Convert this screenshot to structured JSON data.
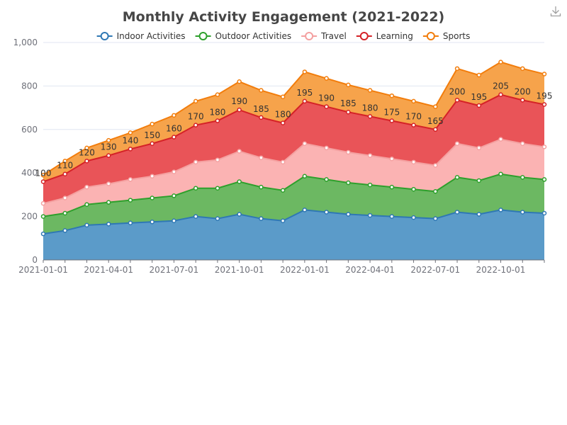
{
  "chart_data": {
    "type": "area",
    "stacked": true,
    "title": "Monthly Activity Engagement (2021-2022)",
    "xlabel": "",
    "ylabel": "",
    "ylim": [
      0,
      1000
    ],
    "y_ticks": [
      0,
      200,
      400,
      600,
      800,
      1000
    ],
    "y_tick_labels": [
      "0",
      "200",
      "400",
      "600",
      "800",
      "1,000"
    ],
    "x_tick_labels": [
      "2021-01-01",
      "2021-04-01",
      "2021-07-01",
      "2021-10-01",
      "2022-01-01",
      "2022-04-01",
      "2022-07-01",
      "2022-10-01"
    ],
    "x": [
      "2021-01",
      "2021-02",
      "2021-03",
      "2021-04",
      "2021-05",
      "2021-06",
      "2021-07",
      "2021-08",
      "2021-09",
      "2021-10",
      "2021-11",
      "2021-12",
      "2022-01",
      "2022-02",
      "2022-03",
      "2022-04",
      "2022-05",
      "2022-06",
      "2022-07",
      "2022-08",
      "2022-09",
      "2022-10",
      "2022-11",
      "2022-12"
    ],
    "grid": true,
    "legend_position": "top-center",
    "series": [
      {
        "name": "Indoor Activities",
        "color": "#5b9bc9",
        "stroke": "#2f78b4",
        "values": [
          120,
          135,
          160,
          165,
          170,
          175,
          180,
          200,
          190,
          210,
          190,
          180,
          230,
          220,
          210,
          205,
          200,
          195,
          190,
          220,
          210,
          230,
          220,
          215
        ]
      },
      {
        "name": "Outdoor Activities",
        "color": "#6cb862",
        "stroke": "#2ea02c",
        "values": [
          80,
          80,
          95,
          100,
          105,
          110,
          115,
          130,
          140,
          150,
          145,
          140,
          155,
          150,
          145,
          140,
          135,
          130,
          125,
          160,
          155,
          165,
          160,
          155
        ]
      },
      {
        "name": "Travel",
        "color": "#fbb3b3",
        "stroke": "#f4a0a0",
        "values": [
          60,
          70,
          80,
          85,
          95,
          100,
          110,
          120,
          130,
          140,
          135,
          130,
          150,
          145,
          140,
          135,
          130,
          125,
          120,
          155,
          150,
          160,
          155,
          150
        ]
      },
      {
        "name": "Learning",
        "color": "#e95458",
        "stroke": "#d52227",
        "values": [
          100,
          110,
          120,
          130,
          140,
          150,
          160,
          170,
          180,
          190,
          185,
          180,
          195,
          190,
          185,
          180,
          175,
          170,
          165,
          200,
          195,
          205,
          200,
          195
        ]
      },
      {
        "name": "Sports",
        "color": "#f6a34b",
        "stroke": "#f27d0c",
        "values": [
          30,
          60,
          60,
          70,
          75,
          90,
          100,
          110,
          120,
          130,
          125,
          120,
          135,
          130,
          125,
          120,
          115,
          110,
          105,
          145,
          140,
          150,
          145,
          140
        ]
      }
    ],
    "data_labels_series": "Learning"
  },
  "toolbar": {
    "download_icon": "download-icon"
  }
}
